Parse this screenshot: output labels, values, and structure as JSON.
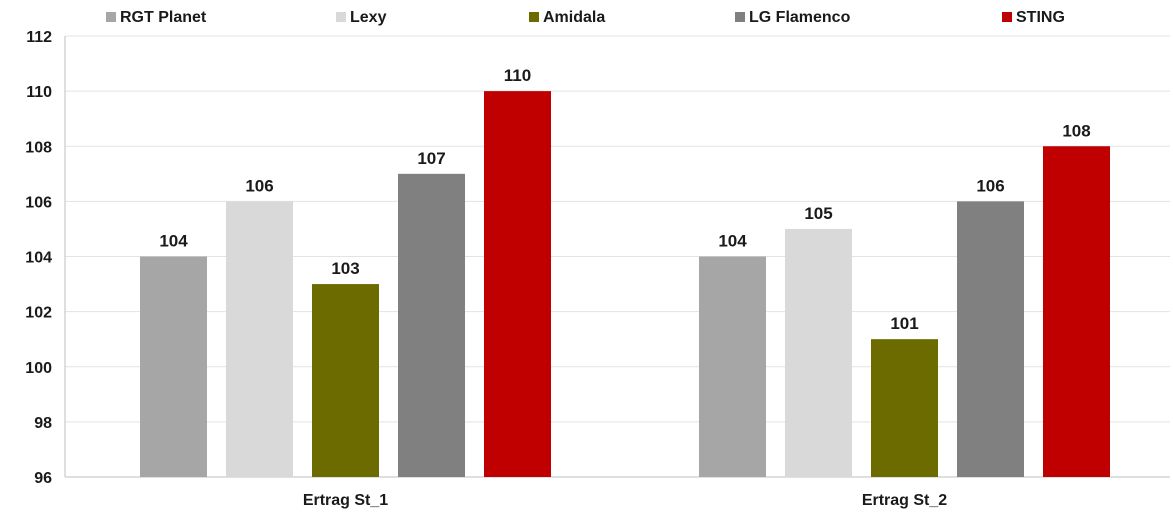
{
  "chart_data": {
    "type": "bar",
    "categories": [
      "Ertrag St_1",
      "Ertrag St_2"
    ],
    "series": [
      {
        "name": "RGT Planet",
        "color": "#a6a6a6",
        "values": [
          104,
          104
        ]
      },
      {
        "name": "Lexy",
        "color": "#d9d9d9",
        "values": [
          106,
          105
        ]
      },
      {
        "name": "Amidala",
        "color": "#6b6b00",
        "values": [
          103,
          101
        ]
      },
      {
        "name": "LG Flamenco",
        "color": "#808080",
        "values": [
          107,
          106
        ]
      },
      {
        "name": "STING",
        "color": "#c00000",
        "values": [
          110,
          108
        ]
      }
    ],
    "title": "",
    "xlabel": "",
    "ylabel": "",
    "ylim": [
      96,
      112
    ],
    "yticks": [
      96,
      98,
      100,
      102,
      104,
      106,
      108,
      110,
      112
    ],
    "grid": true,
    "legend_position": "top",
    "data_labels": true
  }
}
